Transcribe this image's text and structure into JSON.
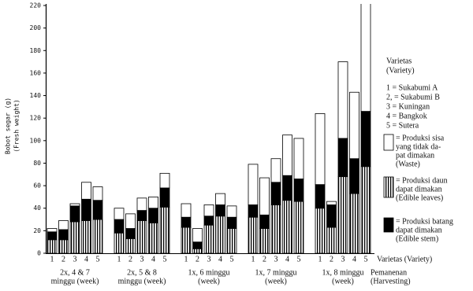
{
  "chart_data": {
    "type": "grouped-stacked-bar",
    "y_label": [
      "Bobot segar (g)",
      "(Fresh weight)"
    ],
    "x_label": "Varietas (Variety)",
    "group_axis_label": [
      "Pemanenan",
      "(Harvesting)"
    ],
    "categories": [
      "1",
      "2",
      "3",
      "4",
      "5"
    ],
    "groups": [
      [
        "2x, 4 & 7",
        "minggu (week)"
      ],
      [
        "2x, 5 & 8",
        "minggu (week)"
      ],
      [
        "1x, 6 minggu",
        "(week)"
      ],
      [
        "1x, 7 minggu",
        "(week)"
      ],
      [
        "1x, 8 minggu",
        "(week)"
      ]
    ],
    "variety_legend": {
      "title": [
        "Varietas",
        "(Variety)"
      ],
      "entries": [
        "1 = Sukabumi A",
        "2, = Sukabumi B",
        "3 = Kuningan",
        "4 = Bangkok",
        "5 = Sutera"
      ]
    },
    "series": [
      {
        "name": [
          "= Produksi daun",
          "dapat dimakan",
          "(Edible leaves)"
        ],
        "color": "#000000",
        "pattern": "vertical-stripes",
        "values": [
          [
            12,
            12,
            28,
            29,
            30
          ],
          [
            18,
            13,
            29,
            27,
            41
          ],
          [
            23,
            4,
            25,
            33,
            22
          ],
          [
            32,
            22,
            43,
            47,
            46
          ],
          [
            40,
            23,
            68,
            53,
            77
          ]
        ]
      },
      {
        "name": [
          "= Produksi batang",
          "dapat dimakan",
          "(Edible stem)"
        ],
        "color": "#000000",
        "pattern": "solid",
        "values": [
          [
            7,
            9,
            14,
            19,
            17
          ],
          [
            12,
            9,
            9,
            13,
            17
          ],
          [
            9,
            6,
            8,
            10,
            10
          ],
          [
            11,
            12,
            20,
            22,
            20
          ],
          [
            21,
            20,
            34,
            31,
            49
          ]
        ]
      },
      {
        "name": [
          "= Produksi sisa",
          "yang tidak da-",
          "pat dimakan",
          "(Waste)"
        ],
        "color": "#ffffff",
        "pattern": "solid",
        "values": [
          [
            3,
            8,
            2,
            15,
            12
          ],
          [
            10,
            13,
            11,
            10,
            13
          ],
          [
            12,
            12,
            10,
            10,
            10
          ],
          [
            36,
            33,
            21,
            36,
            36
          ],
          [
            63,
            3,
            68,
            59,
            104
          ]
        ]
      }
    ],
    "ylim": [
      0,
      220
    ],
    "yticks": [
      0,
      20,
      40,
      60,
      80,
      100,
      120,
      140,
      160,
      180,
      200,
      220
    ]
  }
}
